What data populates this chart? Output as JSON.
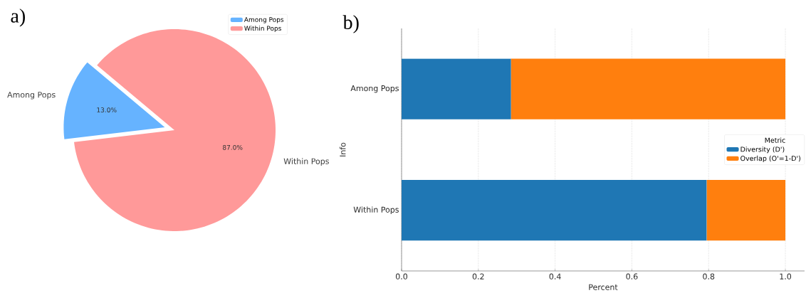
{
  "chart_data": [
    {
      "type": "pie",
      "title": "a)",
      "categories": [
        "Among Pops",
        "Within Pops"
      ],
      "values": [
        13,
        87
      ],
      "colors": [
        "#66b3ff",
        "#ff9999"
      ],
      "value_labels": [
        "13.0%",
        "87.0%"
      ],
      "legend": "top right"
    },
    {
      "type": "bar",
      "title": "b)",
      "orientation": "horizontal",
      "stacked": true,
      "categories": [
        "Among Pops",
        "Within Pops"
      ],
      "series": [
        {
          "name": "Diversity (D')",
          "color": "#1f77b4",
          "values": [
            0.285,
            0.795
          ]
        },
        {
          "name": "Overlap (O'=1-D')",
          "color": "#ff7f0e",
          "values": [
            0.715,
            0.205
          ]
        }
      ],
      "xlabel": "Percent",
      "ylabel": "Info",
      "legend_title": "Metric",
      "legend": "right",
      "grid": "x",
      "xlim": [
        0,
        1.05
      ],
      "xticks": [
        {
          "value": 0,
          "label": "0.0"
        },
        {
          "value": 0.2,
          "label": "0.2"
        },
        {
          "value": 0.4,
          "label": "0.4"
        },
        {
          "value": 0.6,
          "label": "0.6"
        },
        {
          "value": 0.8,
          "label": "0.8"
        },
        {
          "value": 1,
          "label": "1.0"
        }
      ]
    }
  ]
}
